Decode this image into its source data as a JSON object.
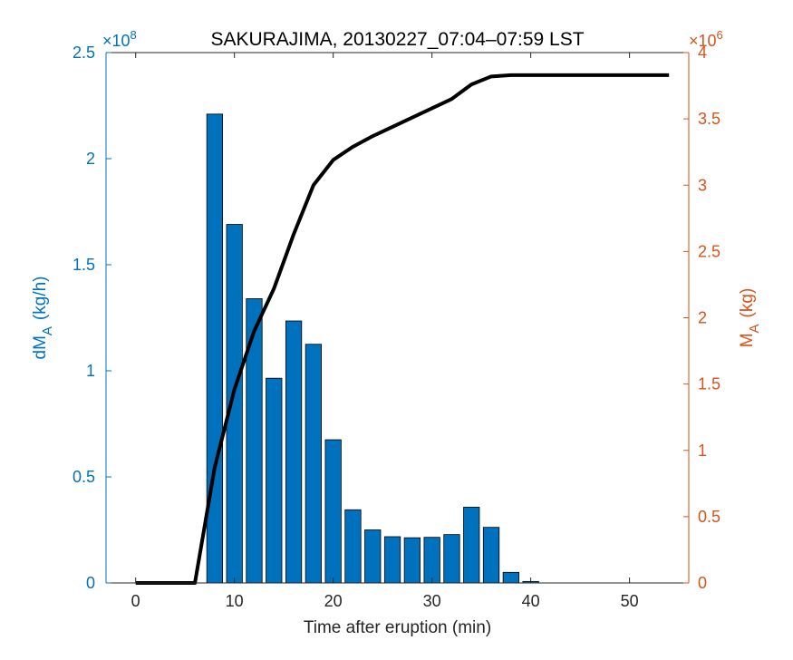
{
  "chart_data": {
    "type": "bar",
    "title": "SAKURAJIMA, 20130227_07:04–07:59 LST",
    "xlabel": "Time after eruption (min)",
    "xlim": [
      -3,
      56
    ],
    "xticks": [
      "0",
      "10",
      "20",
      "30",
      "40",
      "50"
    ],
    "left_axis": {
      "label_main": "dM",
      "label_sub": "A",
      "label_unit": "(kg/h)",
      "exponent_base": "×10",
      "exponent_power": "8",
      "scale": 100000000,
      "ylim": [
        0,
        2.5
      ],
      "ticks": [
        "0",
        "0.5",
        "1",
        "1.5",
        "2",
        "2.5"
      ],
      "color": "#0072BD"
    },
    "right_axis": {
      "label_main": "M",
      "label_sub": "A",
      "label_unit": "(kg)",
      "exponent_base": "×10",
      "exponent_power": "6",
      "scale": 1000000,
      "ylim": [
        0,
        4
      ],
      "ticks": [
        "0",
        "0.5",
        "1",
        "1.5",
        "2",
        "2.5",
        "3",
        "3.5",
        "4"
      ],
      "color": "#D95319"
    },
    "bars": {
      "axis": "left",
      "color": "#0072BD",
      "edge_color": "#000000",
      "x": [
        8,
        10,
        12,
        14,
        16,
        18,
        20,
        22,
        24,
        26,
        28,
        30,
        32,
        34,
        36,
        38,
        40
      ],
      "values": [
        2.21,
        1.69,
        1.34,
        0.965,
        1.235,
        1.125,
        0.675,
        0.345,
        0.25,
        0.218,
        0.213,
        0.215,
        0.228,
        0.357,
        0.262,
        0.05,
        0.007
      ]
    },
    "line": {
      "axis": "right",
      "color": "#000000",
      "x": [
        0,
        6,
        8,
        10,
        12,
        14,
        16,
        18,
        20,
        22,
        24,
        26,
        28,
        30,
        32,
        34,
        36,
        38,
        40,
        54
      ],
      "values": [
        0,
        0,
        0.87,
        1.46,
        1.9,
        2.22,
        2.63,
        3.0,
        3.19,
        3.29,
        3.37,
        3.44,
        3.51,
        3.58,
        3.65,
        3.76,
        3.82,
        3.83,
        3.83,
        3.83
      ]
    },
    "grid": false,
    "legend": "none"
  }
}
